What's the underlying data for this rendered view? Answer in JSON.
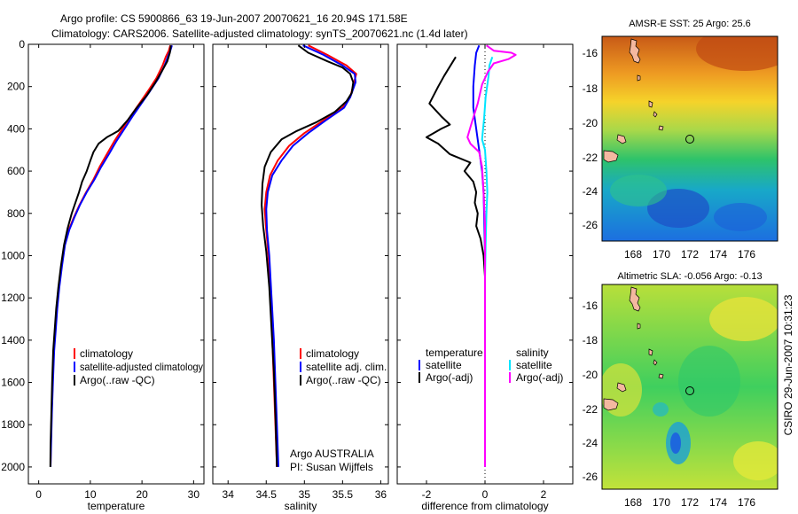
{
  "header": {
    "line1": "Argo profile: CS 5900866_63 19-Jun-2007 20070621_16 20.94S 171.58E",
    "line2": "Climatology: CARS2006. Satellite-adjusted climatology: synTS_20070621.nc (1.4d later)"
  },
  "side_label": "CSIRO 29-Jun-2007 10:31:23",
  "chart_data": [
    {
      "type": "line",
      "id": "temperature",
      "xlabel": "temperature",
      "ylabel": "",
      "xlim": [
        -2,
        32
      ],
      "ylim": [
        2080,
        0
      ],
      "y_reversed": true,
      "xticks": [
        0,
        10,
        20,
        30
      ],
      "yticks": [
        0,
        200,
        400,
        600,
        800,
        1000,
        1200,
        1400,
        1600,
        1800,
        2000
      ],
      "legend": [
        "climatology",
        "satellite-adjusted climatology",
        "Argo(..raw -QC)"
      ],
      "legend_placement": "lower-center",
      "series": [
        {
          "name": "climatology",
          "color": "#ff0000",
          "points": [
            [
              25.5,
              5
            ],
            [
              25.2,
              30
            ],
            [
              24.6,
              60
            ],
            [
              24,
              100
            ],
            [
              22.8,
              160
            ],
            [
              21.2,
              220
            ],
            [
              19.5,
              280
            ],
            [
              17.8,
              340
            ],
            [
              16.2,
              400
            ],
            [
              14.6,
              460
            ],
            [
              13.2,
              520
            ],
            [
              11.8,
              580
            ],
            [
              10.6,
              640
            ],
            [
              9.2,
              700
            ],
            [
              7.9,
              760
            ],
            [
              6.8,
              820
            ],
            [
              5.8,
              880
            ],
            [
              5,
              950
            ],
            [
              4.4,
              1050
            ],
            [
              3.9,
              1150
            ],
            [
              3.5,
              1250
            ],
            [
              3.2,
              1350
            ],
            [
              2.9,
              1450
            ],
            [
              2.7,
              1600
            ],
            [
              2.5,
              1750
            ],
            [
              2.35,
              1900
            ],
            [
              2.3,
              2000
            ]
          ]
        },
        {
          "name": "satellite-adjusted climatology",
          "color": "#0000ff",
          "points": [
            [
              25.8,
              5
            ],
            [
              25.5,
              30
            ],
            [
              25,
              60
            ],
            [
              24.4,
              100
            ],
            [
              23.2,
              160
            ],
            [
              21.6,
              220
            ],
            [
              19.9,
              280
            ],
            [
              18.2,
              340
            ],
            [
              16.6,
              400
            ],
            [
              15,
              460
            ],
            [
              13.6,
              520
            ],
            [
              12.1,
              580
            ],
            [
              10.8,
              640
            ],
            [
              9.3,
              700
            ],
            [
              8,
              760
            ],
            [
              6.9,
              820
            ],
            [
              5.9,
              880
            ],
            [
              5.1,
              950
            ],
            [
              4.5,
              1050
            ],
            [
              4,
              1150
            ],
            [
              3.6,
              1250
            ],
            [
              3.3,
              1350
            ],
            [
              3,
              1450
            ],
            [
              2.75,
              1600
            ],
            [
              2.55,
              1750
            ],
            [
              2.4,
              1900
            ],
            [
              2.3,
              2000
            ]
          ]
        },
        {
          "name": "Argo(..raw -QC)",
          "color": "#000000",
          "points": [
            [
              25.6,
              5
            ],
            [
              25.4,
              40
            ],
            [
              24.9,
              80
            ],
            [
              23.8,
              130
            ],
            [
              22.6,
              180
            ],
            [
              21,
              240
            ],
            [
              19,
              300
            ],
            [
              17.2,
              360
            ],
            [
              15.4,
              410
            ],
            [
              13.2,
              440
            ],
            [
              11.6,
              470
            ],
            [
              10.6,
              510
            ],
            [
              10,
              550
            ],
            [
              9.3,
              600
            ],
            [
              8.4,
              650
            ],
            [
              7.8,
              700
            ],
            [
              7.1,
              750
            ],
            [
              6.4,
              800
            ],
            [
              5.6,
              870
            ],
            [
              4.9,
              950
            ],
            [
              4.3,
              1050
            ],
            [
              3.8,
              1150
            ],
            [
              3.4,
              1250
            ],
            [
              3.1,
              1350
            ],
            [
              2.8,
              1450
            ],
            [
              2.6,
              1600
            ],
            [
              2.45,
              1750
            ],
            [
              2.3,
              1900
            ],
            [
              2.25,
              2000
            ]
          ]
        }
      ]
    },
    {
      "type": "line",
      "id": "salinity",
      "xlabel": "salinity",
      "ylabel": "",
      "xlim": [
        33.8,
        36.1
      ],
      "ylim": [
        2080,
        0
      ],
      "y_reversed": true,
      "xticks": [
        34,
        34.5,
        35,
        35.5,
        36
      ],
      "legend": [
        "climatology",
        "satellite adj. clim.",
        "Argo(..raw -QC)"
      ],
      "legend_placement": "lower-center",
      "annotation": [
        "Argo AUSTRALIA",
        "PI: Susan Wijffels"
      ],
      "series": [
        {
          "name": "climatology",
          "color": "#ff0000",
          "points": [
            [
              35.05,
              5
            ],
            [
              35.3,
              50
            ],
            [
              35.55,
              100
            ],
            [
              35.68,
              140
            ],
            [
              35.65,
              180
            ],
            [
              35.6,
              250
            ],
            [
              35.5,
              300
            ],
            [
              35.25,
              360
            ],
            [
              35,
              420
            ],
            [
              34.8,
              480
            ],
            [
              34.65,
              550
            ],
            [
              34.55,
              620
            ],
            [
              34.5,
              700
            ],
            [
              34.48,
              780
            ],
            [
              34.5,
              880
            ],
            [
              34.53,
              1000
            ],
            [
              34.56,
              1200
            ],
            [
              34.58,
              1400
            ],
            [
              34.6,
              1600
            ],
            [
              34.62,
              1800
            ],
            [
              34.64,
              2000
            ]
          ]
        },
        {
          "name": "satellite adj. clim.",
          "color": "#0000ff",
          "points": [
            [
              34.98,
              5
            ],
            [
              35.25,
              50
            ],
            [
              35.5,
              100
            ],
            [
              35.66,
              140
            ],
            [
              35.67,
              180
            ],
            [
              35.6,
              250
            ],
            [
              35.52,
              300
            ],
            [
              35.28,
              360
            ],
            [
              35.05,
              420
            ],
            [
              34.85,
              480
            ],
            [
              34.7,
              550
            ],
            [
              34.58,
              620
            ],
            [
              34.52,
              700
            ],
            [
              34.5,
              780
            ],
            [
              34.51,
              880
            ],
            [
              34.54,
              1000
            ],
            [
              34.57,
              1200
            ],
            [
              34.6,
              1400
            ],
            [
              34.62,
              1600
            ],
            [
              34.64,
              1800
            ],
            [
              34.66,
              2000
            ]
          ]
        },
        {
          "name": "Argo(..raw -QC)",
          "color": "#000000",
          "points": [
            [
              34.92,
              5
            ],
            [
              35.05,
              40
            ],
            [
              35.3,
              80
            ],
            [
              35.5,
              110
            ],
            [
              35.6,
              140
            ],
            [
              35.64,
              180
            ],
            [
              35.62,
              230
            ],
            [
              35.55,
              270
            ],
            [
              35.4,
              320
            ],
            [
              35.15,
              370
            ],
            [
              34.9,
              410
            ],
            [
              34.7,
              450
            ],
            [
              34.56,
              510
            ],
            [
              34.48,
              580
            ],
            [
              34.45,
              660
            ],
            [
              34.44,
              760
            ],
            [
              34.46,
              860
            ],
            [
              34.5,
              980
            ],
            [
              34.54,
              1150
            ],
            [
              34.57,
              1350
            ],
            [
              34.6,
              1550
            ],
            [
              34.62,
              1750
            ],
            [
              34.64,
              2000
            ]
          ]
        }
      ]
    },
    {
      "type": "line",
      "id": "difference",
      "xlabel": "difference from climatology",
      "ylabel": "",
      "xlim": [
        -3,
        3
      ],
      "ylim": [
        2080,
        0
      ],
      "y_reversed": true,
      "xticks": [
        -2,
        0,
        2
      ],
      "legend_left": [
        "temperature",
        "satellite",
        "Argo(-adj)"
      ],
      "legend_right": [
        "salinity",
        "satellite",
        "Argo(-adj)"
      ],
      "legend_placement": "lower-center",
      "series": [
        {
          "name": "temperature satellite",
          "color": "#0000ff",
          "points": [
            [
              -0.2,
              5
            ],
            [
              -0.3,
              40
            ],
            [
              -0.35,
              100
            ],
            [
              -0.4,
              200
            ],
            [
              -0.4,
              300
            ],
            [
              -0.3,
              400
            ],
            [
              -0.2,
              500
            ],
            [
              -0.1,
              600
            ],
            [
              -0.05,
              700
            ],
            [
              -0.02,
              850
            ],
            [
              0,
              1000
            ],
            [
              0,
              2000
            ]
          ]
        },
        {
          "name": "temperature Argo(-adj)",
          "color": "#000000",
          "points": [
            [
              -1.0,
              60
            ],
            [
              -1.4,
              150
            ],
            [
              -1.6,
              200
            ],
            [
              -1.9,
              280
            ],
            [
              -1.5,
              340
            ],
            [
              -1.2,
              380
            ],
            [
              -1.5,
              400
            ],
            [
              -2.0,
              440
            ],
            [
              -1.6,
              470
            ],
            [
              -1.2,
              520
            ],
            [
              -0.5,
              560
            ],
            [
              -0.7,
              600
            ],
            [
              -0.4,
              650
            ],
            [
              -0.3,
              700
            ],
            [
              -0.35,
              750
            ],
            [
              -0.25,
              800
            ],
            [
              -0.3,
              860
            ],
            [
              -0.15,
              920
            ],
            [
              -0.05,
              1000
            ],
            [
              0,
              1100
            ],
            [
              0,
              1500
            ],
            [
              0,
              2000
            ]
          ]
        },
        {
          "name": "salinity satellite",
          "color": "#00e5ff",
          "points": [
            [
              0.25,
              60
            ],
            [
              0.15,
              100
            ],
            [
              0.12,
              150
            ],
            [
              0.02,
              250
            ],
            [
              -0.03,
              350
            ],
            [
              -0.1,
              450
            ],
            [
              0,
              500
            ],
            [
              0.05,
              600
            ],
            [
              0.08,
              700
            ],
            [
              0.05,
              800
            ],
            [
              0.02,
              950
            ],
            [
              0,
              1100
            ],
            [
              0,
              2000
            ]
          ]
        },
        {
          "name": "salinity Argo(-adj)",
          "color": "#ff00ff",
          "points": [
            [
              0.05,
              5
            ],
            [
              0.3,
              30
            ],
            [
              0.9,
              40
            ],
            [
              1.05,
              50
            ],
            [
              0.8,
              70
            ],
            [
              0.3,
              90
            ],
            [
              0.1,
              130
            ],
            [
              -0.1,
              190
            ],
            [
              -0.25,
              280
            ],
            [
              -0.45,
              370
            ],
            [
              -0.6,
              440
            ],
            [
              -0.5,
              470
            ],
            [
              -0.2,
              510
            ],
            [
              -0.1,
              580
            ],
            [
              -0.05,
              700
            ],
            [
              0,
              850
            ],
            [
              0,
              1000
            ],
            [
              0,
              1500
            ],
            [
              0,
              2000
            ]
          ]
        }
      ]
    }
  ],
  "maps": [
    {
      "title": "AMSR-E SST: 25 Argo: 25.6",
      "xticks": [
        "168",
        "170",
        "172",
        "174",
        "176"
      ],
      "yticks": [
        "-16",
        "-18",
        "-20",
        "-22",
        "-24",
        "-26"
      ]
    },
    {
      "title": "Altimetric SLA: -0.056 Argo: -0.13",
      "xticks": [
        "168",
        "170",
        "172",
        "174",
        "176"
      ],
      "yticks": [
        "-16",
        "-18",
        "-20",
        "-22",
        "-24",
        "-26"
      ]
    }
  ]
}
